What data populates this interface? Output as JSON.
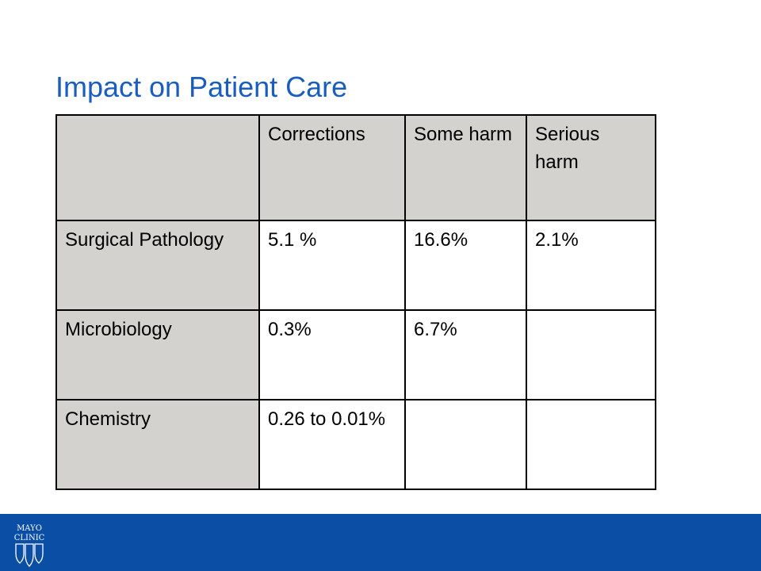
{
  "slide": {
    "title": "Impact on Patient Care"
  },
  "table": {
    "columns": [
      "",
      "Corrections",
      "Some harm",
      "Serious harm"
    ],
    "rows": [
      {
        "label": "Surgical Pathology",
        "cells": [
          "5.1 %",
          "16.6%",
          "2.1%"
        ]
      },
      {
        "label": "Microbiology",
        "cells": [
          "0.3%",
          "6.7%",
          ""
        ]
      },
      {
        "label": "Chemistry",
        "cells": [
          "0.26 to 0.01%",
          "",
          ""
        ]
      }
    ]
  },
  "footer": {
    "logo": {
      "line1": "MAYO",
      "line2": "CLINIC",
      "icon": "mayo-clinic-shields-icon"
    },
    "colors": {
      "bar": "#0a4ea6",
      "title": "#1a5dbd",
      "header_fill": "#d4d2cf"
    }
  }
}
